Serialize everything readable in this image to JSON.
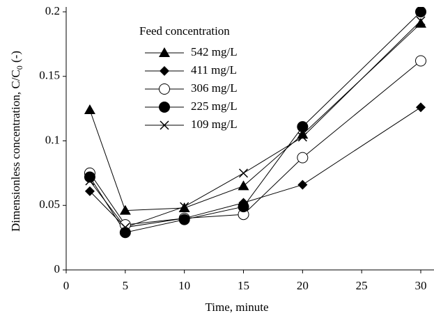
{
  "chart_data": {
    "type": "line",
    "x_label": "Time, minute",
    "y_label": [
      "Dimensionless concentration, C/C",
      "0",
      " (-)"
    ],
    "legend_title": "Feed concentration",
    "legend": "upper left",
    "xlim": [
      0,
      30
    ],
    "xticks": [
      0,
      5,
      10,
      15,
      20,
      25,
      30
    ],
    "ylim": [
      0,
      0.2
    ],
    "yticks": [
      0,
      0.05,
      0.1,
      0.15,
      0.2
    ],
    "x": [
      2,
      5,
      10,
      15,
      20,
      30
    ],
    "series": [
      {
        "name": "542 mg/L",
        "color": "#000000",
        "marker": "triangle",
        "values": [
          0.124,
          0.046,
          0.048,
          0.065,
          0.105,
          0.191
        ]
      },
      {
        "name": "411 mg/L",
        "color": "#000000",
        "marker": "diamond",
        "values": [
          0.061,
          0.033,
          0.04,
          0.052,
          0.066,
          0.126
        ]
      },
      {
        "name": "306 mg/L",
        "color": "#000000",
        "marker": "circle-open",
        "values": [
          0.075,
          0.035,
          0.04,
          0.043,
          0.087,
          0.162
        ]
      },
      {
        "name": "225 mg/L",
        "color": "#000000",
        "marker": "circle",
        "values": [
          0.072,
          0.029,
          0.039,
          0.049,
          0.111,
          0.2
        ]
      },
      {
        "name": "109 mg/L",
        "color": "#000000",
        "marker": "x",
        "values": [
          0.069,
          0.033,
          0.049,
          0.075,
          0.103,
          0.193
        ]
      }
    ]
  }
}
